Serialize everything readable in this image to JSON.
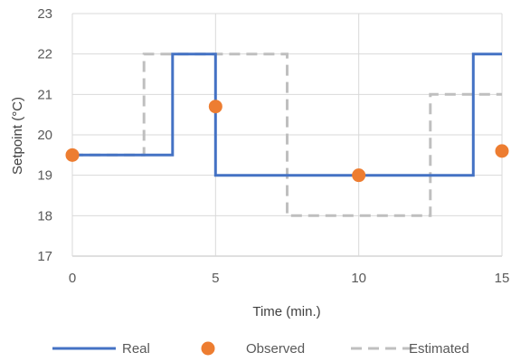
{
  "chart_data": {
    "type": "line",
    "xlabel": "Time (min.)",
    "ylabel": "Setpoint (°C)",
    "xlim": [
      0,
      15
    ],
    "ylim": [
      17,
      23
    ],
    "xticks": [
      0,
      5,
      10,
      15
    ],
    "yticks": [
      17,
      18,
      19,
      20,
      21,
      22,
      23
    ],
    "grid": true,
    "legend_position": "bottom",
    "series": [
      {
        "name": "Real",
        "style": "step-line",
        "color": "#4472C4",
        "points": [
          [
            0,
            19.5
          ],
          [
            3.5,
            19.5
          ],
          [
            3.5,
            22
          ],
          [
            5,
            22
          ],
          [
            5,
            19
          ],
          [
            14,
            19
          ],
          [
            14,
            22
          ],
          [
            15,
            22
          ]
        ]
      },
      {
        "name": "Observed",
        "style": "markers",
        "color": "#ED7D31",
        "points": [
          [
            0,
            19.5
          ],
          [
            5,
            20.7
          ],
          [
            10,
            19
          ],
          [
            15,
            19.6
          ]
        ]
      },
      {
        "name": "Estimated",
        "style": "dashed-step-line",
        "color": "#BFBFBF",
        "points": [
          [
            0,
            19.5
          ],
          [
            2.5,
            19.5
          ],
          [
            2.5,
            22
          ],
          [
            7.5,
            22
          ],
          [
            7.5,
            18
          ],
          [
            12.5,
            18
          ],
          [
            12.5,
            21
          ],
          [
            15,
            21
          ]
        ]
      }
    ]
  },
  "colors": {
    "grid": "#D9D9D9",
    "axis": "#BFBFBF"
  }
}
